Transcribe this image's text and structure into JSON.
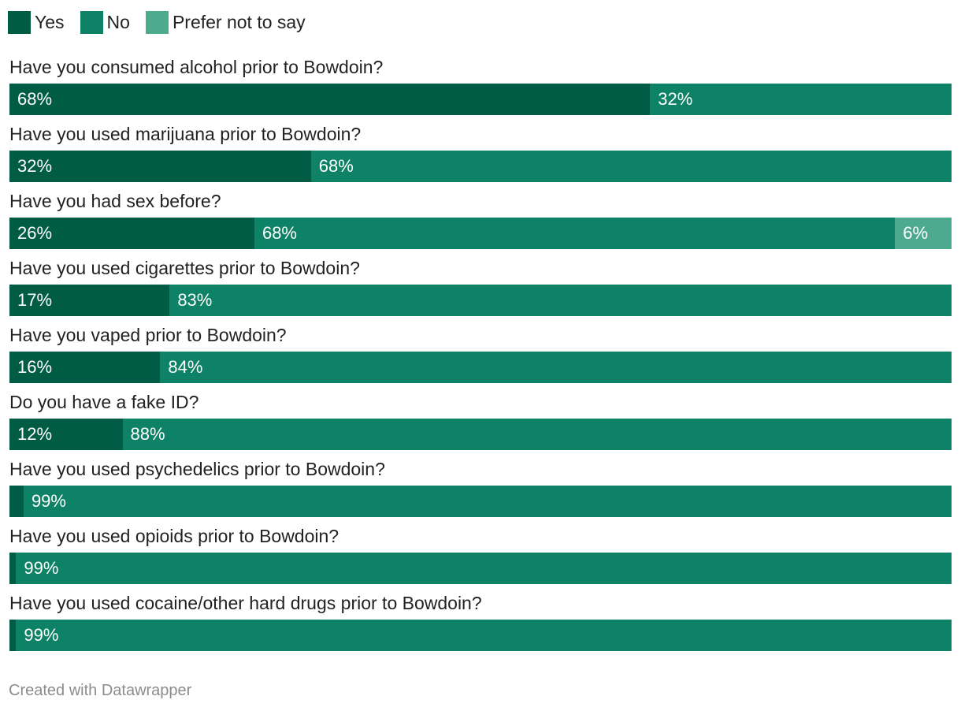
{
  "legend": [
    {
      "label": "Yes",
      "color": "#005c45"
    },
    {
      "label": "No",
      "color": "#0e8266"
    },
    {
      "label": "Prefer not to say",
      "color": "#4eaa8f"
    }
  ],
  "chart_data": {
    "type": "bar",
    "orientation": "horizontal",
    "stacked": true,
    "xlim": [
      0,
      100
    ],
    "grid": false,
    "legend_position": "top-left",
    "categories": [
      "Have you consumed alcohol prior to Bowdoin?",
      "Have you used marijuana prior to Bowdoin?",
      "Have you had sex before?",
      "Have you used cigarettes prior to Bowdoin?",
      "Have you vaped prior to Bowdoin?",
      "Do you have a fake ID?",
      "Have you used psychedelics prior to Bowdoin?",
      "Have you used opioids prior to Bowdoin?",
      "Have you used cocaine/other hard drugs prior to Bowdoin?"
    ],
    "series": [
      {
        "name": "Yes",
        "values": [
          68,
          32,
          26,
          17,
          16,
          12,
          1.5,
          0.7,
          0.7
        ]
      },
      {
        "name": "No",
        "values": [
          32,
          68,
          68,
          83,
          84,
          88,
          98.5,
          99.3,
          99.3
        ]
      },
      {
        "name": "Prefer not to say",
        "values": [
          0,
          0,
          6,
          0,
          0,
          0,
          0,
          0,
          0
        ]
      }
    ],
    "data_labels": [
      [
        "68%",
        "32%",
        ""
      ],
      [
        "32%",
        "68%",
        ""
      ],
      [
        "26%",
        "68%",
        "6%"
      ],
      [
        "17%",
        "83%",
        ""
      ],
      [
        "16%",
        "84%",
        ""
      ],
      [
        "12%",
        "88%",
        ""
      ],
      [
        "",
        "99%",
        ""
      ],
      [
        "",
        "99%",
        ""
      ],
      [
        "",
        "99%",
        ""
      ]
    ]
  },
  "footer": {
    "credit": "Created with Datawrapper"
  }
}
